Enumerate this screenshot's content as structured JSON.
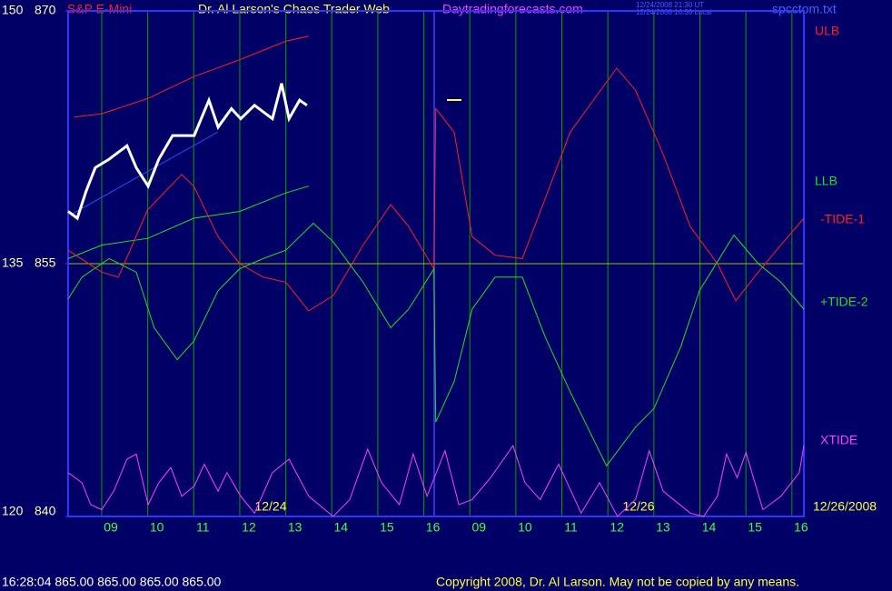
{
  "header": {
    "symbol": "S&P E-Mini",
    "title": "Dr. Al Larson's Chaos Trader Web",
    "site": "Daytradingforecasts.com",
    "time_ut": "12/24/2008 21:30 UT",
    "time_local": "12/24/2008 16:30 Local",
    "file": "spcctom.txt"
  },
  "footer": {
    "quote": "16:28:04  865.00 865.00 865.00 865.00",
    "copyright": "Copyright 2008, Dr. Al Larson. May not be copied by any means."
  },
  "chart_data": {
    "type": "line",
    "xlim": [
      0.27,
      16.26
    ],
    "xticks": [
      {
        "value": 1,
        "label": "09"
      },
      {
        "value": 2,
        "label": "10"
      },
      {
        "value": 3,
        "label": "11"
      },
      {
        "value": 4,
        "label": "12"
      },
      {
        "value": 5,
        "label": "13"
      },
      {
        "value": 6,
        "label": "14"
      },
      {
        "value": 7,
        "label": "15"
      },
      {
        "value": 8,
        "label": "16"
      },
      {
        "value": 9,
        "label": "09"
      },
      {
        "value": 10,
        "label": "10"
      },
      {
        "value": 11,
        "label": "11"
      },
      {
        "value": 12,
        "label": "12"
      },
      {
        "value": 13,
        "label": "13"
      },
      {
        "value": 14,
        "label": "14"
      },
      {
        "value": 15,
        "label": "15"
      },
      {
        "value": 16,
        "label": "16"
      }
    ],
    "x_dates": [
      "12/24",
      "12/26",
      "12/26/2008"
    ],
    "ylim": [
      840,
      870
    ],
    "yticks": [
      840,
      855,
      870
    ],
    "y2lim": [
      120,
      150
    ],
    "y2ticks": [
      120,
      135,
      150
    ],
    "grid": true,
    "price": {
      "color": "#ffffff",
      "x": [
        0.27,
        0.47,
        0.66,
        0.86,
        1.16,
        1.55,
        1.75,
        2.01,
        2.24,
        2.54,
        3.01,
        3.33,
        3.53,
        3.82,
        4.02,
        4.32,
        4.71,
        4.91,
        5.07,
        5.3,
        5.46
      ],
      "values": [
        858.1,
        857.7,
        859.3,
        860.7,
        861.2,
        862.0,
        860.7,
        859.6,
        861.2,
        862.6,
        862.6,
        864.7,
        863.1,
        864.2,
        863.6,
        864.4,
        863.6,
        865.7,
        863.6,
        864.7,
        864.4
      ]
    },
    "series": [
      {
        "name": "ULB",
        "color": "#ff2020",
        "x": [
          0.4,
          1,
          2,
          3,
          4,
          5,
          5.5
        ],
        "values": [
          863.7,
          863.9,
          864.8,
          866.1,
          867.1,
          868.2,
          868.5
        ]
      },
      {
        "name": "LLB",
        "color": "#20e020",
        "x": [
          0.27,
          1,
          2,
          3,
          4,
          5,
          5.5
        ],
        "values": [
          855.3,
          856.1,
          856.5,
          857.7,
          858.1,
          859.2,
          859.6
        ]
      },
      {
        "name": "-TIDE-1",
        "color": "#ff2020",
        "x": [
          0.27,
          1,
          1.36,
          2,
          2.74,
          3,
          3.53,
          4,
          4.51,
          5,
          5.5,
          6.03,
          6.68,
          7.28,
          7.67,
          8.22,
          8.26,
          8.66,
          9.05,
          9.55,
          10.14,
          10.63,
          11.18,
          12.19,
          12.6,
          13.2,
          13.79,
          14.38,
          14.78,
          15.27,
          15.76,
          16.26
        ],
        "values": [
          855.8,
          854.5,
          854.2,
          858.2,
          860.3,
          859.6,
          856.6,
          855.0,
          854.2,
          853.9,
          852.2,
          853.1,
          856.1,
          858.5,
          857.2,
          854.7,
          864.2,
          862.8,
          856.6,
          855.5,
          855.3,
          858.8,
          862.8,
          866.6,
          865.3,
          861.5,
          857.2,
          855.0,
          852.8,
          854.5,
          856.1,
          857.7
        ]
      },
      {
        "name": "+TIDE-2",
        "color": "#20e020",
        "x": [
          0.27,
          0.57,
          1.16,
          1.75,
          2.14,
          2.64,
          3,
          3.53,
          4,
          4.51,
          5,
          5.6,
          6.03,
          6.68,
          7.28,
          7.67,
          8.22,
          8.26,
          8.66,
          9.05,
          9.55,
          10.14,
          10.63,
          11.18,
          11.97,
          12.6,
          13,
          13.59,
          13.99,
          14.74,
          15.27,
          15.76,
          16.26
        ],
        "values": [
          852.9,
          854.2,
          855.3,
          854.5,
          851.2,
          849.3,
          850.4,
          853.4,
          854.7,
          855.3,
          855.8,
          857.4,
          856.3,
          853.9,
          851.2,
          852.3,
          854.7,
          845.6,
          848.0,
          852.3,
          854.2,
          854.2,
          850.7,
          847.4,
          843.0,
          845.3,
          846.4,
          850.1,
          853.4,
          856.7,
          855.0,
          853.9,
          852.3
        ]
      },
      {
        "name": "XTIDE",
        "color": "#ff40ff",
        "x": [
          0.27,
          0.57,
          0.76,
          1,
          1.26,
          1.55,
          1.75,
          2.01,
          2.24,
          2.5,
          2.74,
          3.01,
          3.23,
          3.53,
          3.72,
          4.02,
          4.32,
          4.71,
          5.07,
          5.5,
          6.03,
          6.39,
          6.78,
          7.08,
          7.47,
          7.77,
          8.07,
          8.46,
          8.76,
          9.05,
          9.45,
          9.94,
          10.2,
          10.53,
          10.93,
          11.42,
          11.82,
          12.21,
          12.6,
          12.9,
          13.2,
          13.79,
          14.08,
          14.38,
          14.58,
          14.81,
          15,
          15.37,
          15.76,
          16.16,
          16.26
        ],
        "values": [
          842.6,
          842.0,
          840.7,
          840.4,
          841.5,
          843.4,
          843.7,
          840.7,
          842.0,
          842.9,
          841.2,
          841.8,
          843.1,
          841.5,
          842.6,
          841.2,
          840.2,
          842.6,
          843.4,
          841.2,
          840.0,
          841.0,
          844.0,
          842.0,
          840.7,
          843.7,
          841.2,
          843.9,
          840.7,
          841.0,
          842.3,
          844.2,
          842.0,
          841.0,
          843.1,
          840.2,
          842.0,
          840.0,
          841.0,
          843.9,
          841.5,
          840.2,
          840.0,
          841.2,
          843.7,
          842.3,
          843.8,
          840.4,
          841.2,
          842.6,
          844.2
        ]
      }
    ]
  }
}
